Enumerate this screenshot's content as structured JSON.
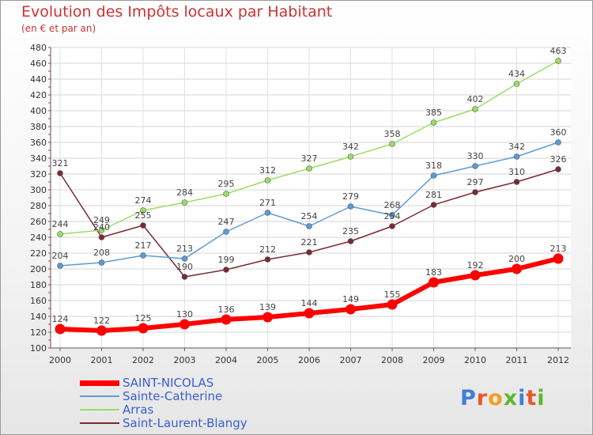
{
  "chart_data": {
    "type": "line",
    "title": "Evolution des Impôts locaux par Habitant",
    "subtitle": "(en € et par an)",
    "xlabel": "",
    "ylabel": "",
    "x": [
      "2000",
      "2001",
      "2002",
      "2003",
      "2004",
      "2005",
      "2006",
      "2007",
      "2008",
      "2009",
      "2010",
      "2011",
      "2012"
    ],
    "ylim": [
      100,
      480
    ],
    "yticks": [
      100,
      120,
      140,
      160,
      180,
      200,
      220,
      240,
      260,
      280,
      300,
      320,
      340,
      360,
      380,
      400,
      420,
      440,
      460,
      480
    ],
    "grid": true,
    "legend_position": "bottom-left",
    "series": [
      {
        "name": "SAINT-NICOLAS",
        "color": "#ff0000",
        "values": [
          124,
          122,
          125,
          130,
          136,
          139,
          144,
          149,
          155,
          183,
          192,
          200,
          213
        ]
      },
      {
        "name": "Sainte-Catherine",
        "color": "#5b9bd5",
        "values": [
          204,
          208,
          217,
          213,
          247,
          271,
          254,
          279,
          268,
          318,
          330,
          342,
          360
        ]
      },
      {
        "name": "Arras",
        "color": "#99dd66",
        "values": [
          244,
          249,
          274,
          284,
          295,
          312,
          327,
          342,
          358,
          385,
          402,
          434,
          463
        ]
      },
      {
        "name": "Saint-Laurent-Blangy",
        "color": "#7a2a33",
        "values": [
          321,
          240,
          255,
          190,
          199,
          212,
          221,
          235,
          254,
          281,
          297,
          310,
          326
        ]
      }
    ]
  },
  "logo": {
    "letters": [
      {
        "ch": "P",
        "color": "#3f7fd9"
      },
      {
        "ch": "r",
        "color": "#e8562a"
      },
      {
        "ch": "o",
        "color": "#f0a020"
      },
      {
        "ch": "x",
        "color": "#5cb82f"
      },
      {
        "ch": "i",
        "color": "#3f7fd9"
      },
      {
        "ch": "t",
        "color": "#e8562a"
      },
      {
        "ch": "i",
        "color": "#5cb82f"
      }
    ]
  }
}
